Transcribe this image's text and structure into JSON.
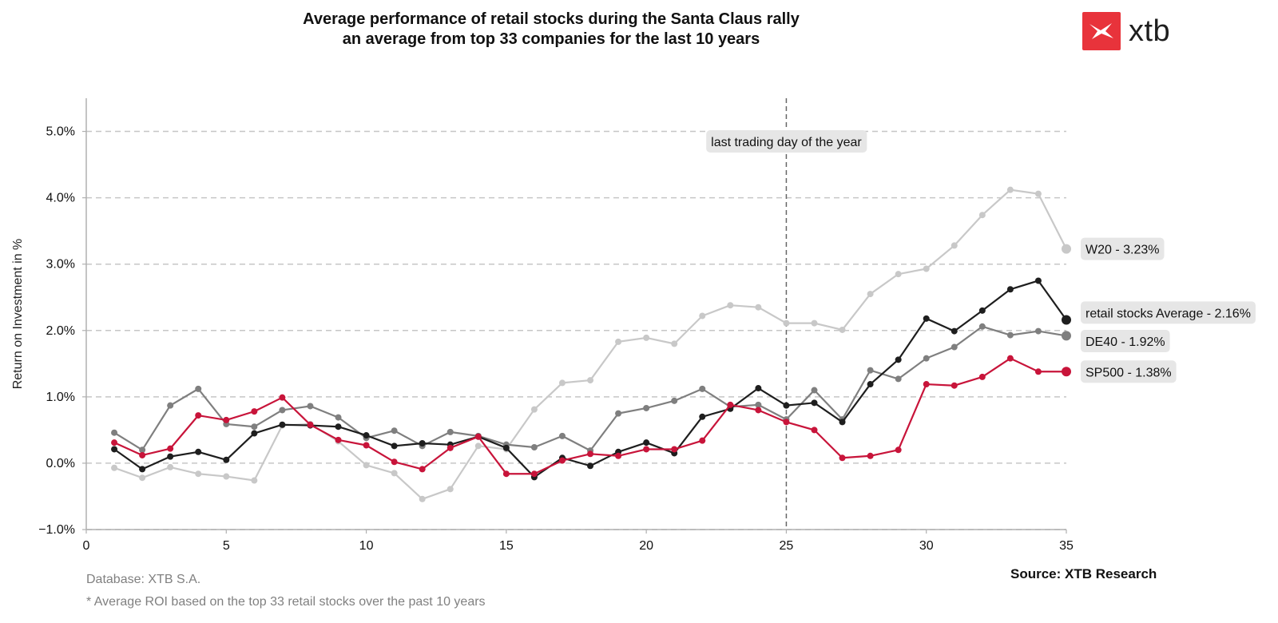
{
  "header": {
    "title_line1": "Average performance of retail stocks during the Santa Claus rally",
    "title_line2": "an average from top 33 companies for the last 10 years"
  },
  "logo": {
    "text": "xtb",
    "color": "#e8333b"
  },
  "footer": {
    "database": "Database: XTB S.A.",
    "note": "* Average ROI based on the top 33 retail stocks over the past 10 years",
    "source": "Source: XTB Research"
  },
  "chart_data": {
    "type": "line",
    "title": "",
    "xlabel": "",
    "ylabel": "Return on Investment in %",
    "xlim": [
      0,
      35
    ],
    "ylim": [
      -1.0,
      5.5
    ],
    "x_ticks": [
      0,
      5,
      10,
      15,
      20,
      25,
      30,
      35
    ],
    "x_tick_labels": [
      "0",
      "5",
      "10",
      "15",
      "20",
      "25",
      "30",
      "35"
    ],
    "y_ticks": [
      -1.0,
      0.0,
      1.0,
      2.0,
      3.0,
      4.0,
      5.0
    ],
    "y_tick_labels": [
      "−1.0%",
      "0.0%",
      "1.0%",
      "2.0%",
      "3.0%",
      "4.0%",
      "5.0%"
    ],
    "grid": "horizontal dashed",
    "vline": {
      "x": 25,
      "label": "last trading day of the year"
    },
    "x": [
      1,
      2,
      3,
      4,
      5,
      6,
      7,
      8,
      9,
      10,
      11,
      12,
      13,
      14,
      15,
      16,
      17,
      18,
      19,
      20,
      21,
      22,
      23,
      24,
      25,
      26,
      27,
      28,
      29,
      30,
      31,
      32,
      33,
      34,
      35
    ],
    "series": [
      {
        "name": "W20",
        "end_label": "W20 - 3.23%",
        "color": "#c8c8c8",
        "values": [
          -0.07,
          -0.22,
          -0.06,
          -0.16,
          -0.2,
          -0.26,
          0.57,
          0.59,
          0.33,
          -0.03,
          -0.15,
          -0.54,
          -0.39,
          0.26,
          0.21,
          0.81,
          1.21,
          1.25,
          1.83,
          1.89,
          1.8,
          2.22,
          2.38,
          2.35,
          2.11,
          2.11,
          2.01,
          2.55,
          2.85,
          2.93,
          3.28,
          3.74,
          4.12,
          4.06,
          3.23
        ]
      },
      {
        "name": "DE40",
        "end_label": "DE40 - 1.92%",
        "color": "#7f7f7f",
        "values": [
          0.46,
          0.2,
          0.87,
          1.12,
          0.59,
          0.55,
          0.8,
          0.86,
          0.69,
          0.38,
          0.49,
          0.26,
          0.47,
          0.41,
          0.28,
          0.24,
          0.41,
          0.19,
          0.75,
          0.83,
          0.94,
          1.12,
          0.85,
          0.88,
          0.66,
          1.1,
          0.66,
          1.4,
          1.27,
          1.58,
          1.75,
          2.06,
          1.93,
          1.99,
          1.92
        ]
      },
      {
        "name": "retail stocks Average",
        "end_label": "retail stocks Average - 2.16%",
        "color": "#1e1e1e",
        "values": [
          0.21,
          -0.09,
          0.1,
          0.17,
          0.05,
          0.45,
          0.58,
          0.57,
          0.55,
          0.42,
          0.26,
          0.3,
          0.28,
          0.4,
          0.23,
          -0.21,
          0.08,
          -0.04,
          0.17,
          0.31,
          0.15,
          0.7,
          0.82,
          1.13,
          0.87,
          0.91,
          0.62,
          1.19,
          1.56,
          2.18,
          1.99,
          2.3,
          2.62,
          2.75,
          2.16
        ]
      },
      {
        "name": "SP500",
        "end_label": "SP500 - 1.38%",
        "color": "#c8143a",
        "values": [
          0.31,
          0.12,
          0.22,
          0.72,
          0.65,
          0.78,
          0.99,
          0.58,
          0.35,
          0.27,
          0.02,
          -0.09,
          0.23,
          0.4,
          -0.16,
          -0.16,
          0.04,
          0.14,
          0.11,
          0.21,
          0.21,
          0.34,
          0.88,
          0.8,
          0.62,
          0.5,
          0.08,
          0.11,
          0.2,
          1.19,
          1.17,
          1.3,
          1.58,
          1.38,
          1.38
        ]
      }
    ]
  }
}
